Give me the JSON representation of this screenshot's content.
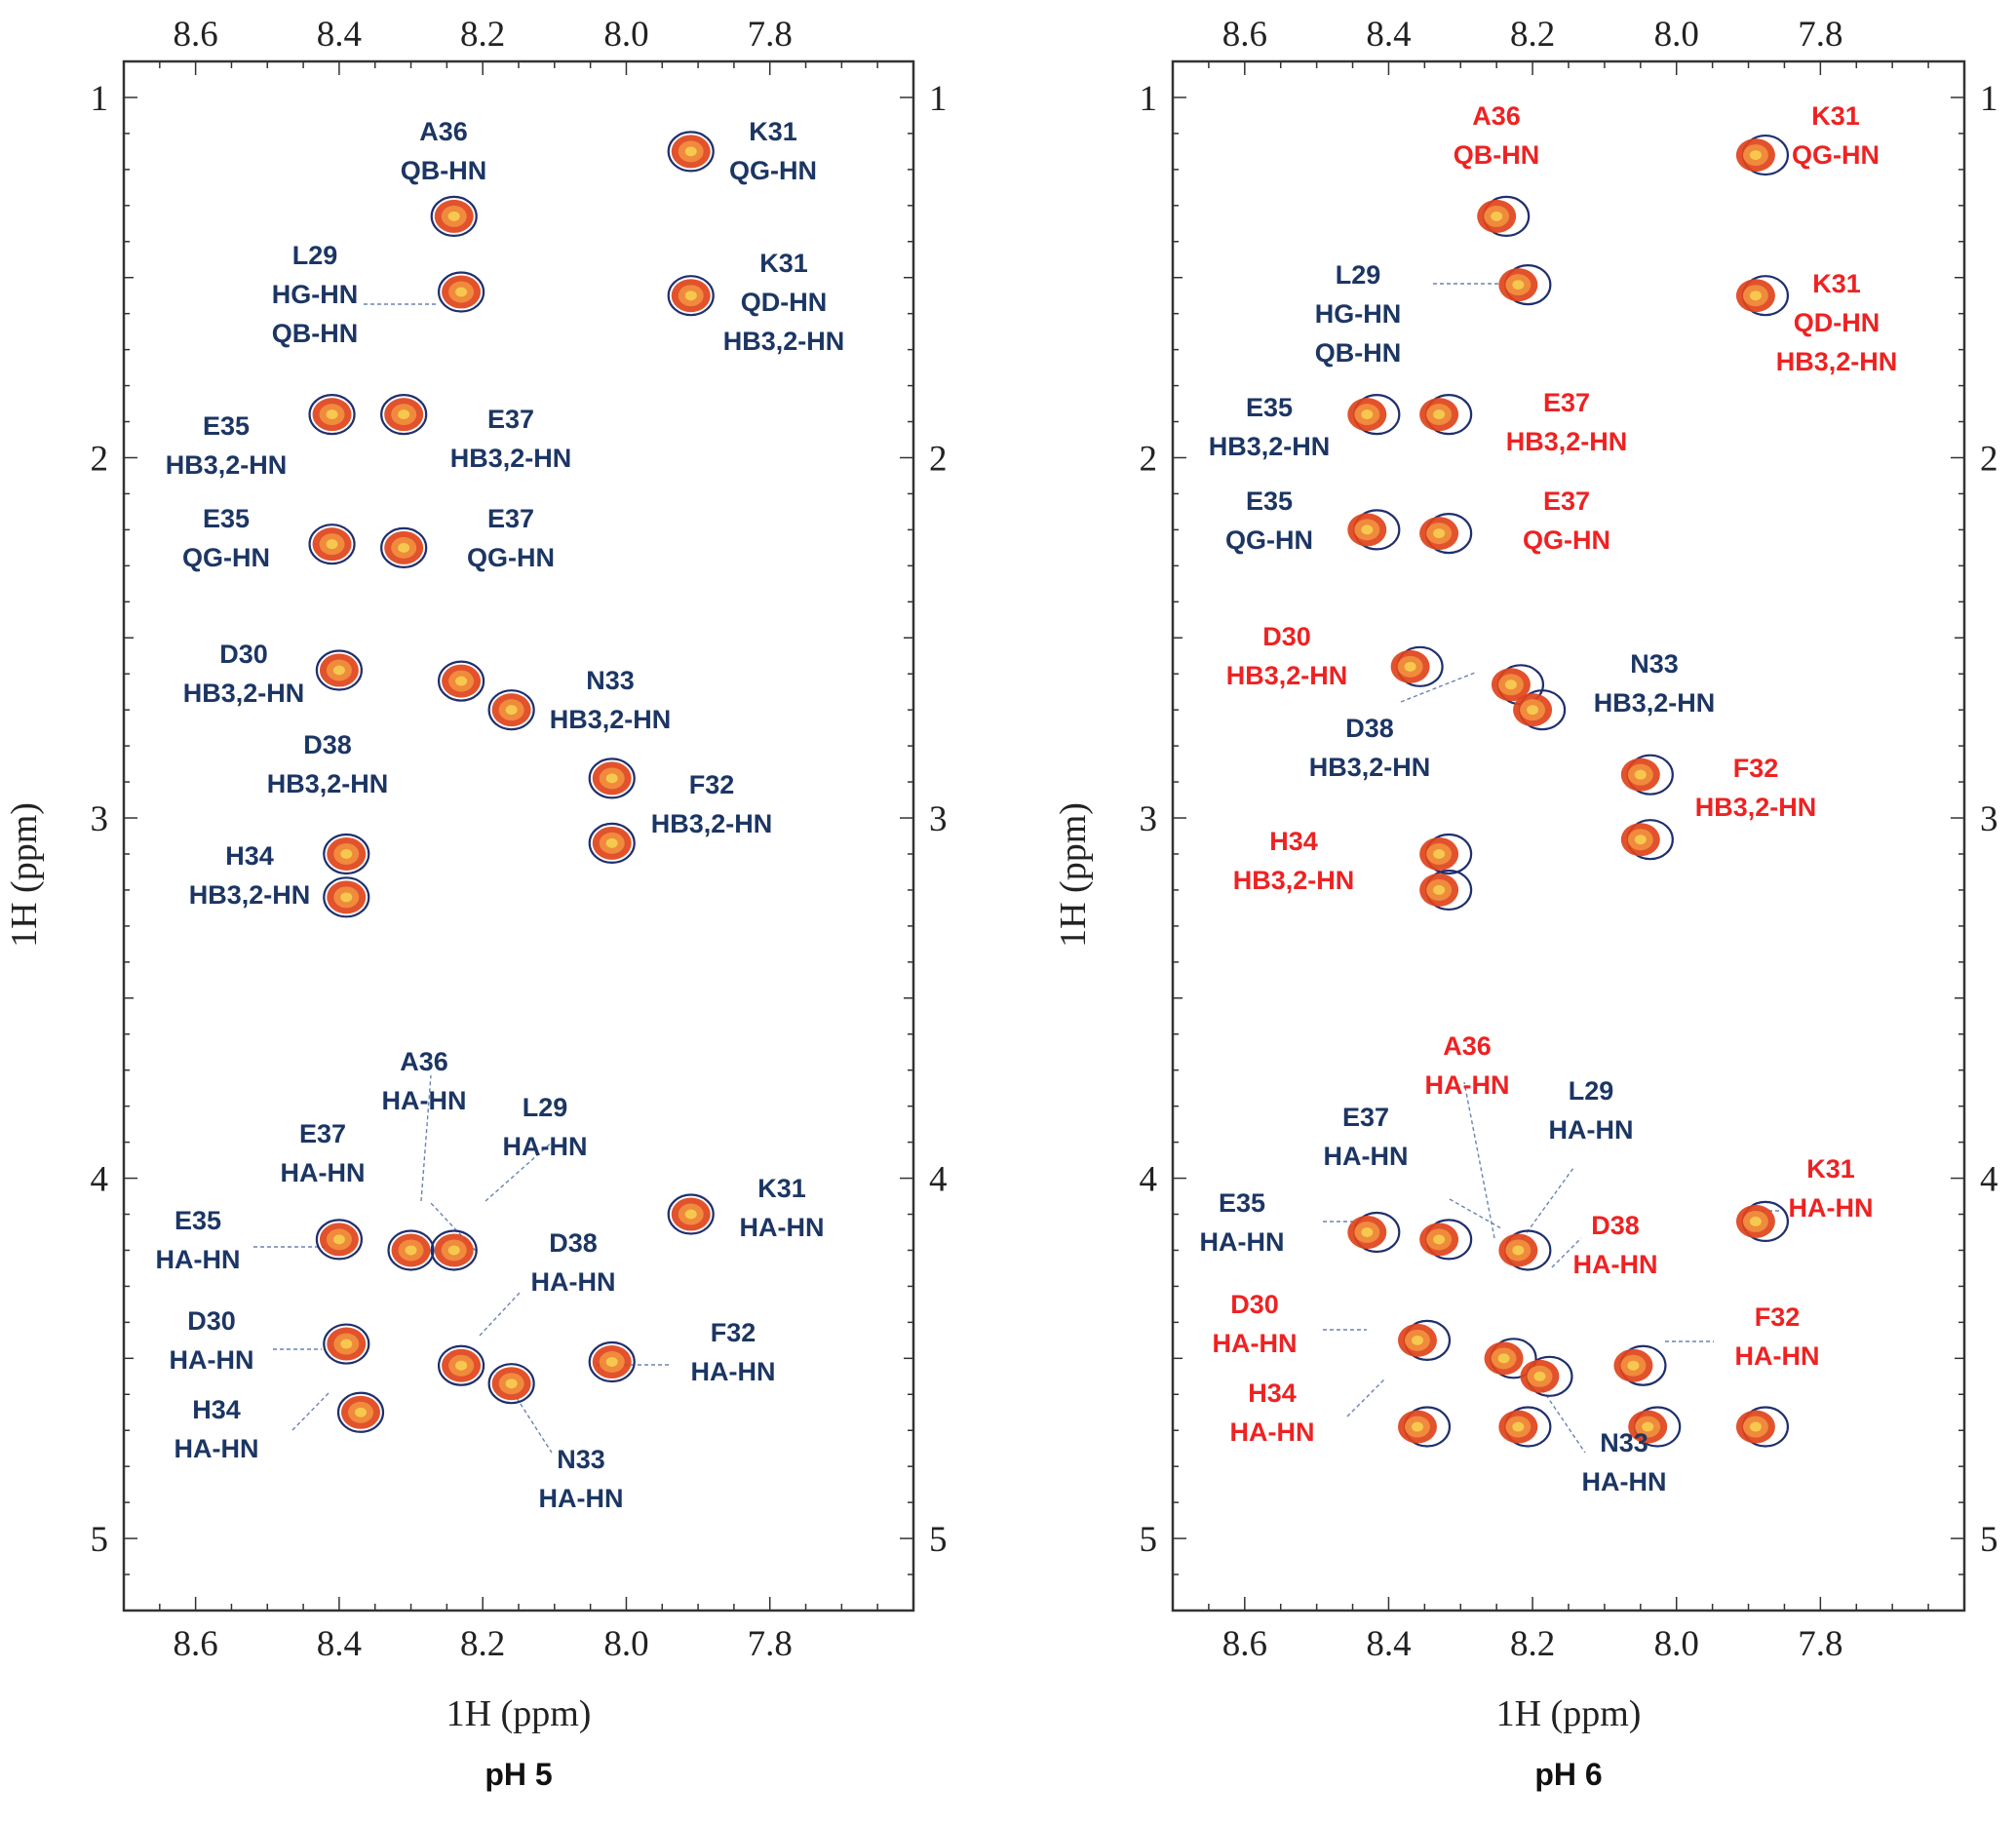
{
  "chart_data": [
    {
      "type": "scatter",
      "subtype": "2D NMR spectrum (TOCSY/NOESY cross-peaks), overlaid contours",
      "caption": "pH 5",
      "xlabel": "1H (ppm)",
      "ylabel": "1H (ppm)",
      "xlim": [
        8.7,
        7.6
      ],
      "ylim": [
        5.2,
        0.9
      ],
      "xticks": [
        "8.6",
        "8.4",
        "8.2",
        "8.0",
        "7.8"
      ],
      "yticks": [
        "1",
        "2",
        "3",
        "4",
        "5"
      ],
      "colors": {
        "contour_outer": "#1f2f6e",
        "contour_fill": "#e0431b",
        "contour_core": "#f6c94e",
        "label_default": "#1c3664",
        "label_changed": "#ee2222"
      },
      "peaks": [
        {
          "x": 8.24,
          "y": 1.33
        },
        {
          "x": 8.23,
          "y": 1.54
        },
        {
          "x": 7.91,
          "y": 1.15
        },
        {
          "x": 7.91,
          "y": 1.55
        },
        {
          "x": 8.41,
          "y": 1.88
        },
        {
          "x": 8.31,
          "y": 1.88
        },
        {
          "x": 8.41,
          "y": 2.24
        },
        {
          "x": 8.31,
          "y": 2.25
        },
        {
          "x": 8.4,
          "y": 2.59
        },
        {
          "x": 8.23,
          "y": 2.62
        },
        {
          "x": 8.16,
          "y": 2.7
        },
        {
          "x": 8.02,
          "y": 2.89
        },
        {
          "x": 8.02,
          "y": 3.07
        },
        {
          "x": 8.39,
          "y": 3.1
        },
        {
          "x": 8.39,
          "y": 3.22
        },
        {
          "x": 8.4,
          "y": 4.17
        },
        {
          "x": 8.3,
          "y": 4.2
        },
        {
          "x": 8.24,
          "y": 4.2
        },
        {
          "x": 7.91,
          "y": 4.1
        },
        {
          "x": 8.39,
          "y": 4.46
        },
        {
          "x": 8.37,
          "y": 4.65
        },
        {
          "x": 8.23,
          "y": 4.52
        },
        {
          "x": 8.16,
          "y": 4.57
        },
        {
          "x": 8.02,
          "y": 4.51
        }
      ],
      "labels": [
        {
          "lines": [
            "A36",
            "QB-HN"
          ],
          "color": "#1c3664"
        },
        {
          "lines": [
            "K31",
            "QG-HN"
          ],
          "color": "#1c3664"
        },
        {
          "lines": [
            "L29",
            "HG-HN",
            "QB-HN"
          ],
          "color": "#1c3664"
        },
        {
          "lines": [
            "K31",
            "QD-HN",
            "HB3,2-HN"
          ],
          "color": "#1c3664"
        },
        {
          "lines": [
            "E35",
            "HB3,2-HN"
          ],
          "color": "#1c3664"
        },
        {
          "lines": [
            "E37",
            "HB3,2-HN"
          ],
          "color": "#1c3664"
        },
        {
          "lines": [
            "E35",
            "QG-HN"
          ],
          "color": "#1c3664"
        },
        {
          "lines": [
            "E37",
            "QG-HN"
          ],
          "color": "#1c3664"
        },
        {
          "lines": [
            "D30",
            "HB3,2-HN"
          ],
          "color": "#1c3664"
        },
        {
          "lines": [
            "N33",
            "HB3,2-HN"
          ],
          "color": "#1c3664"
        },
        {
          "lines": [
            "D38",
            "HB3,2-HN"
          ],
          "color": "#1c3664"
        },
        {
          "lines": [
            "F32",
            "HB3,2-HN"
          ],
          "color": "#1c3664"
        },
        {
          "lines": [
            "H34",
            "HB3,2-HN"
          ],
          "color": "#1c3664"
        },
        {
          "lines": [
            "A36",
            "HA-HN"
          ],
          "color": "#1c3664"
        },
        {
          "lines": [
            "E37",
            "HA-HN"
          ],
          "color": "#1c3664"
        },
        {
          "lines": [
            "L29",
            "HA-HN"
          ],
          "color": "#1c3664"
        },
        {
          "lines": [
            "E35",
            "HA-HN"
          ],
          "color": "#1c3664"
        },
        {
          "lines": [
            "K31",
            "HA-HN"
          ],
          "color": "#1c3664"
        },
        {
          "lines": [
            "D38",
            "HA-HN"
          ],
          "color": "#1c3664"
        },
        {
          "lines": [
            "D30",
            "HA-HN"
          ],
          "color": "#1c3664"
        },
        {
          "lines": [
            "F32",
            "HA-HN"
          ],
          "color": "#1c3664"
        },
        {
          "lines": [
            "H34",
            "HA-HN"
          ],
          "color": "#1c3664"
        },
        {
          "lines": [
            "N33",
            "HA-HN"
          ],
          "color": "#1c3664"
        }
      ]
    },
    {
      "type": "scatter",
      "subtype": "2D NMR spectrum (TOCSY/NOESY cross-peaks), overlaid contours",
      "caption": "pH 6",
      "xlabel": "1H (ppm)",
      "ylabel": "1H (ppm)",
      "xlim": [
        8.7,
        7.6
      ],
      "ylim": [
        5.2,
        0.9
      ],
      "xticks": [
        "8.6",
        "8.4",
        "8.2",
        "8.0",
        "7.8"
      ],
      "yticks": [
        "1",
        "2",
        "3",
        "4",
        "5"
      ],
      "colors": {
        "contour_outer": "#1f2f6e",
        "contour_fill": "#e0431b",
        "contour_core": "#f6c94e",
        "label_default": "#1c3664",
        "label_changed": "#ee2222"
      },
      "peaks": [
        {
          "x": 8.25,
          "y": 1.33
        },
        {
          "x": 8.22,
          "y": 1.52
        },
        {
          "x": 7.89,
          "y": 1.16
        },
        {
          "x": 7.89,
          "y": 1.55
        },
        {
          "x": 8.43,
          "y": 1.88
        },
        {
          "x": 8.33,
          "y": 1.88
        },
        {
          "x": 8.43,
          "y": 2.2
        },
        {
          "x": 8.33,
          "y": 2.21
        },
        {
          "x": 8.37,
          "y": 2.58
        },
        {
          "x": 8.23,
          "y": 2.63
        },
        {
          "x": 8.2,
          "y": 2.7
        },
        {
          "x": 8.05,
          "y": 2.88
        },
        {
          "x": 8.05,
          "y": 3.06
        },
        {
          "x": 8.33,
          "y": 3.1
        },
        {
          "x": 8.33,
          "y": 3.2
        },
        {
          "x": 8.43,
          "y": 4.15
        },
        {
          "x": 8.33,
          "y": 4.17
        },
        {
          "x": 8.22,
          "y": 4.2
        },
        {
          "x": 7.89,
          "y": 4.12
        },
        {
          "x": 8.36,
          "y": 4.45
        },
        {
          "x": 8.36,
          "y": 4.69
        },
        {
          "x": 8.22,
          "y": 4.69
        },
        {
          "x": 8.24,
          "y": 4.5
        },
        {
          "x": 8.19,
          "y": 4.55
        },
        {
          "x": 8.06,
          "y": 4.52
        },
        {
          "x": 8.04,
          "y": 4.69
        },
        {
          "x": 7.89,
          "y": 4.69
        }
      ],
      "labels": [
        {
          "lines": [
            "A36",
            "QB-HN"
          ],
          "color": "#ee2222"
        },
        {
          "lines": [
            "K31",
            "QG-HN"
          ],
          "color": "#ee2222"
        },
        {
          "lines": [
            "L29",
            "HG-HN",
            "QB-HN"
          ],
          "color": "#1c3664"
        },
        {
          "lines": [
            "K31",
            "QD-HN",
            "HB3,2-HN"
          ],
          "color": "#ee2222"
        },
        {
          "lines": [
            "E35",
            "HB3,2-HN"
          ],
          "color": "#1c3664"
        },
        {
          "lines": [
            "E37",
            "HB3,2-HN"
          ],
          "color": "#ee2222"
        },
        {
          "lines": [
            "E35",
            "QG-HN"
          ],
          "color": "#1c3664"
        },
        {
          "lines": [
            "E37",
            "QG-HN"
          ],
          "color": "#ee2222"
        },
        {
          "lines": [
            "D30",
            "HB3,2-HN"
          ],
          "color": "#ee2222"
        },
        {
          "lines": [
            "N33",
            "HB3,2-HN"
          ],
          "color": "#1c3664"
        },
        {
          "lines": [
            "D38",
            "HB3,2-HN"
          ],
          "color": "#1c3664"
        },
        {
          "lines": [
            "F32",
            "HB3,2-HN"
          ],
          "color": "#ee2222"
        },
        {
          "lines": [
            "H34",
            "HB3,2-HN"
          ],
          "color": "#ee2222"
        },
        {
          "lines": [
            "A36",
            "HA-HN"
          ],
          "color": "#ee2222"
        },
        {
          "lines": [
            "L29",
            "HA-HN"
          ],
          "color": "#1c3664"
        },
        {
          "lines": [
            "E37",
            "HA-HN"
          ],
          "color": "#1c3664"
        },
        {
          "lines": [
            "K31",
            "HA-HN"
          ],
          "color": "#ee2222"
        },
        {
          "lines": [
            "E35",
            "HA-HN"
          ],
          "color": "#1c3664"
        },
        {
          "lines": [
            "D38",
            "HA-HN"
          ],
          "color": "#ee2222"
        },
        {
          "lines": [
            "D30",
            "HA-HN"
          ],
          "color": "#ee2222"
        },
        {
          "lines": [
            "F32",
            "HA-HN"
          ],
          "color": "#ee2222"
        },
        {
          "lines": [
            "H34",
            "HA-HN"
          ],
          "color": "#ee2222"
        },
        {
          "lines": [
            "N33",
            "HA-HN"
          ],
          "color": "#1c3664"
        }
      ]
    }
  ]
}
